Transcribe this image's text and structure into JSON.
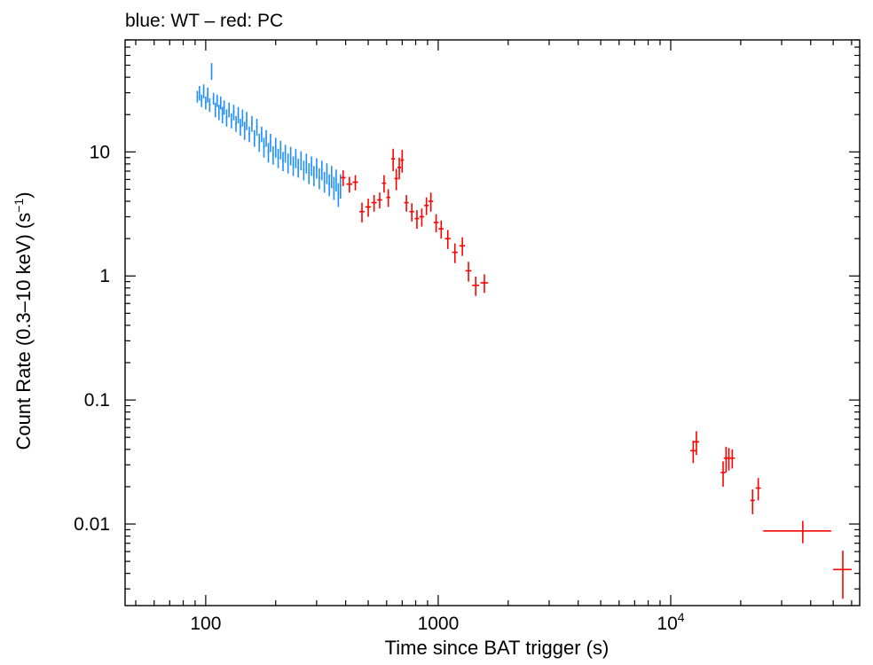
{
  "chart_data": {
    "type": "scatter",
    "title": "blue: WT – red: PC",
    "xlabel": "Time since BAT trigger (s)",
    "ylabel_main": "Count Rate (0.3–10 keV) (s",
    "ylabel_sup": "−1",
    "ylabel_close": ")",
    "x_scale": "log",
    "y_scale": "log",
    "xlim": [
      45,
      65000
    ],
    "ylim": [
      0.0022,
      80
    ],
    "x_ticks": [
      {
        "value": 100,
        "label": "100"
      },
      {
        "value": 1000,
        "label": "1000"
      },
      {
        "value": 10000,
        "label": "10",
        "sup": "4"
      }
    ],
    "y_ticks": [
      {
        "value": 10,
        "label": "10"
      },
      {
        "value": 1,
        "label": "1"
      },
      {
        "value": 0.1,
        "label": "0.1"
      },
      {
        "value": 0.01,
        "label": "0.01"
      }
    ],
    "grid": false,
    "legend": "none",
    "series": [
      {
        "mode": "WT",
        "color": "#1f8fff",
        "points": [
          [
            92,
            28,
            3
          ],
          [
            94,
            30,
            4
          ],
          [
            96,
            26,
            3
          ],
          [
            98,
            31,
            4
          ],
          [
            100,
            25,
            3
          ],
          [
            102,
            29,
            4
          ],
          [
            104,
            24,
            3
          ],
          [
            106,
            45,
            7
          ],
          [
            108,
            27,
            3
          ],
          [
            110,
            22,
            3
          ],
          [
            112,
            26,
            3
          ],
          [
            114,
            21,
            3
          ],
          [
            116,
            25,
            3
          ],
          [
            118,
            20,
            3
          ],
          [
            120,
            23,
            3
          ],
          [
            123,
            19,
            3
          ],
          [
            126,
            22,
            3
          ],
          [
            129,
            18,
            2.5
          ],
          [
            132,
            21,
            3
          ],
          [
            135,
            17,
            2.5
          ],
          [
            138,
            20,
            3
          ],
          [
            141,
            16,
            2.5
          ],
          [
            144,
            19,
            3
          ],
          [
            147,
            15,
            2.5
          ],
          [
            150,
            18,
            3
          ],
          [
            154,
            14,
            2
          ],
          [
            158,
            17,
            2.5
          ],
          [
            162,
            13,
            2
          ],
          [
            166,
            16,
            2.5
          ],
          [
            170,
            12,
            2
          ],
          [
            174,
            14,
            2
          ],
          [
            178,
            11,
            2
          ],
          [
            182,
            13,
            2
          ],
          [
            186,
            10,
            1.8
          ],
          [
            190,
            12,
            2
          ],
          [
            195,
            9.5,
            1.6
          ],
          [
            200,
            11,
            2
          ],
          [
            205,
            9,
            1.6
          ],
          [
            210,
            10.5,
            1.8
          ],
          [
            215,
            8.5,
            1.5
          ],
          [
            220,
            9.8,
            1.6
          ],
          [
            226,
            8.2,
            1.5
          ],
          [
            232,
            9.4,
            1.6
          ],
          [
            238,
            7.8,
            1.4
          ],
          [
            244,
            9,
            1.6
          ],
          [
            250,
            7.5,
            1.3
          ],
          [
            257,
            8.6,
            1.5
          ],
          [
            264,
            7.2,
            1.3
          ],
          [
            271,
            8.2,
            1.5
          ],
          [
            278,
            6.8,
            1.3
          ],
          [
            285,
            7.8,
            1.4
          ],
          [
            292,
            6.5,
            1.2
          ],
          [
            300,
            7.5,
            1.4
          ],
          [
            308,
            6.2,
            1.2
          ],
          [
            316,
            7.2,
            1.3
          ],
          [
            324,
            5.8,
            1.1
          ],
          [
            332,
            6.8,
            1.3
          ],
          [
            340,
            5.5,
            1.1
          ],
          [
            348,
            6.4,
            1.3
          ],
          [
            356,
            5.2,
            1.1
          ],
          [
            364,
            6,
            1.2
          ],
          [
            372,
            4.6,
            1
          ],
          [
            380,
            5.4,
            1.2
          ]
        ]
      },
      {
        "mode": "PC",
        "color": "#ff0000",
        "points": [
          [
            390,
            6.2,
            0.9,
            10
          ],
          [
            415,
            5.5,
            0.8,
            12
          ],
          [
            440,
            5.7,
            0.8,
            12
          ],
          [
            470,
            3.3,
            0.6,
            12
          ],
          [
            500,
            3.6,
            0.6,
            14
          ],
          [
            530,
            3.9,
            0.6,
            14
          ],
          [
            560,
            4.1,
            0.6,
            14
          ],
          [
            585,
            5.6,
            0.9,
            12
          ],
          [
            610,
            4.3,
            0.7,
            12
          ],
          [
            640,
            8.8,
            1.8,
            12
          ],
          [
            660,
            6.1,
            1.2,
            12
          ],
          [
            680,
            7.5,
            1.5,
            12
          ],
          [
            700,
            8.6,
            1.8,
            12
          ],
          [
            730,
            3.9,
            0.6,
            16
          ],
          [
            770,
            3.3,
            0.55,
            18
          ],
          [
            810,
            2.9,
            0.5,
            18
          ],
          [
            850,
            3,
            0.5,
            20
          ],
          [
            890,
            3.7,
            0.6,
            20
          ],
          [
            930,
            4,
            0.7,
            22
          ],
          [
            980,
            2.7,
            0.45,
            24
          ],
          [
            1030,
            2.4,
            0.4,
            26
          ],
          [
            1100,
            2,
            0.35,
            30
          ],
          [
            1180,
            1.55,
            0.28,
            32
          ],
          [
            1270,
            1.75,
            0.3,
            36
          ],
          [
            1350,
            1.1,
            0.2,
            40
          ],
          [
            1450,
            0.84,
            0.15,
            50
          ],
          [
            1580,
            0.88,
            0.15,
            60
          ],
          [
            12500,
            0.039,
            0.008,
            350
          ],
          [
            12900,
            0.046,
            0.01,
            350
          ],
          [
            16800,
            0.026,
            0.006,
            400
          ],
          [
            17300,
            0.034,
            0.008,
            400
          ],
          [
            17800,
            0.034,
            0.007,
            400
          ],
          [
            18400,
            0.034,
            0.006,
            500
          ],
          [
            22500,
            0.0155,
            0.0035,
            500
          ],
          [
            23800,
            0.0195,
            0.004,
            600
          ],
          [
            37000,
            0.0088,
            0.0018,
            12000
          ],
          [
            55000,
            0.0043,
            0.0018,
            5000
          ]
        ]
      }
    ]
  }
}
